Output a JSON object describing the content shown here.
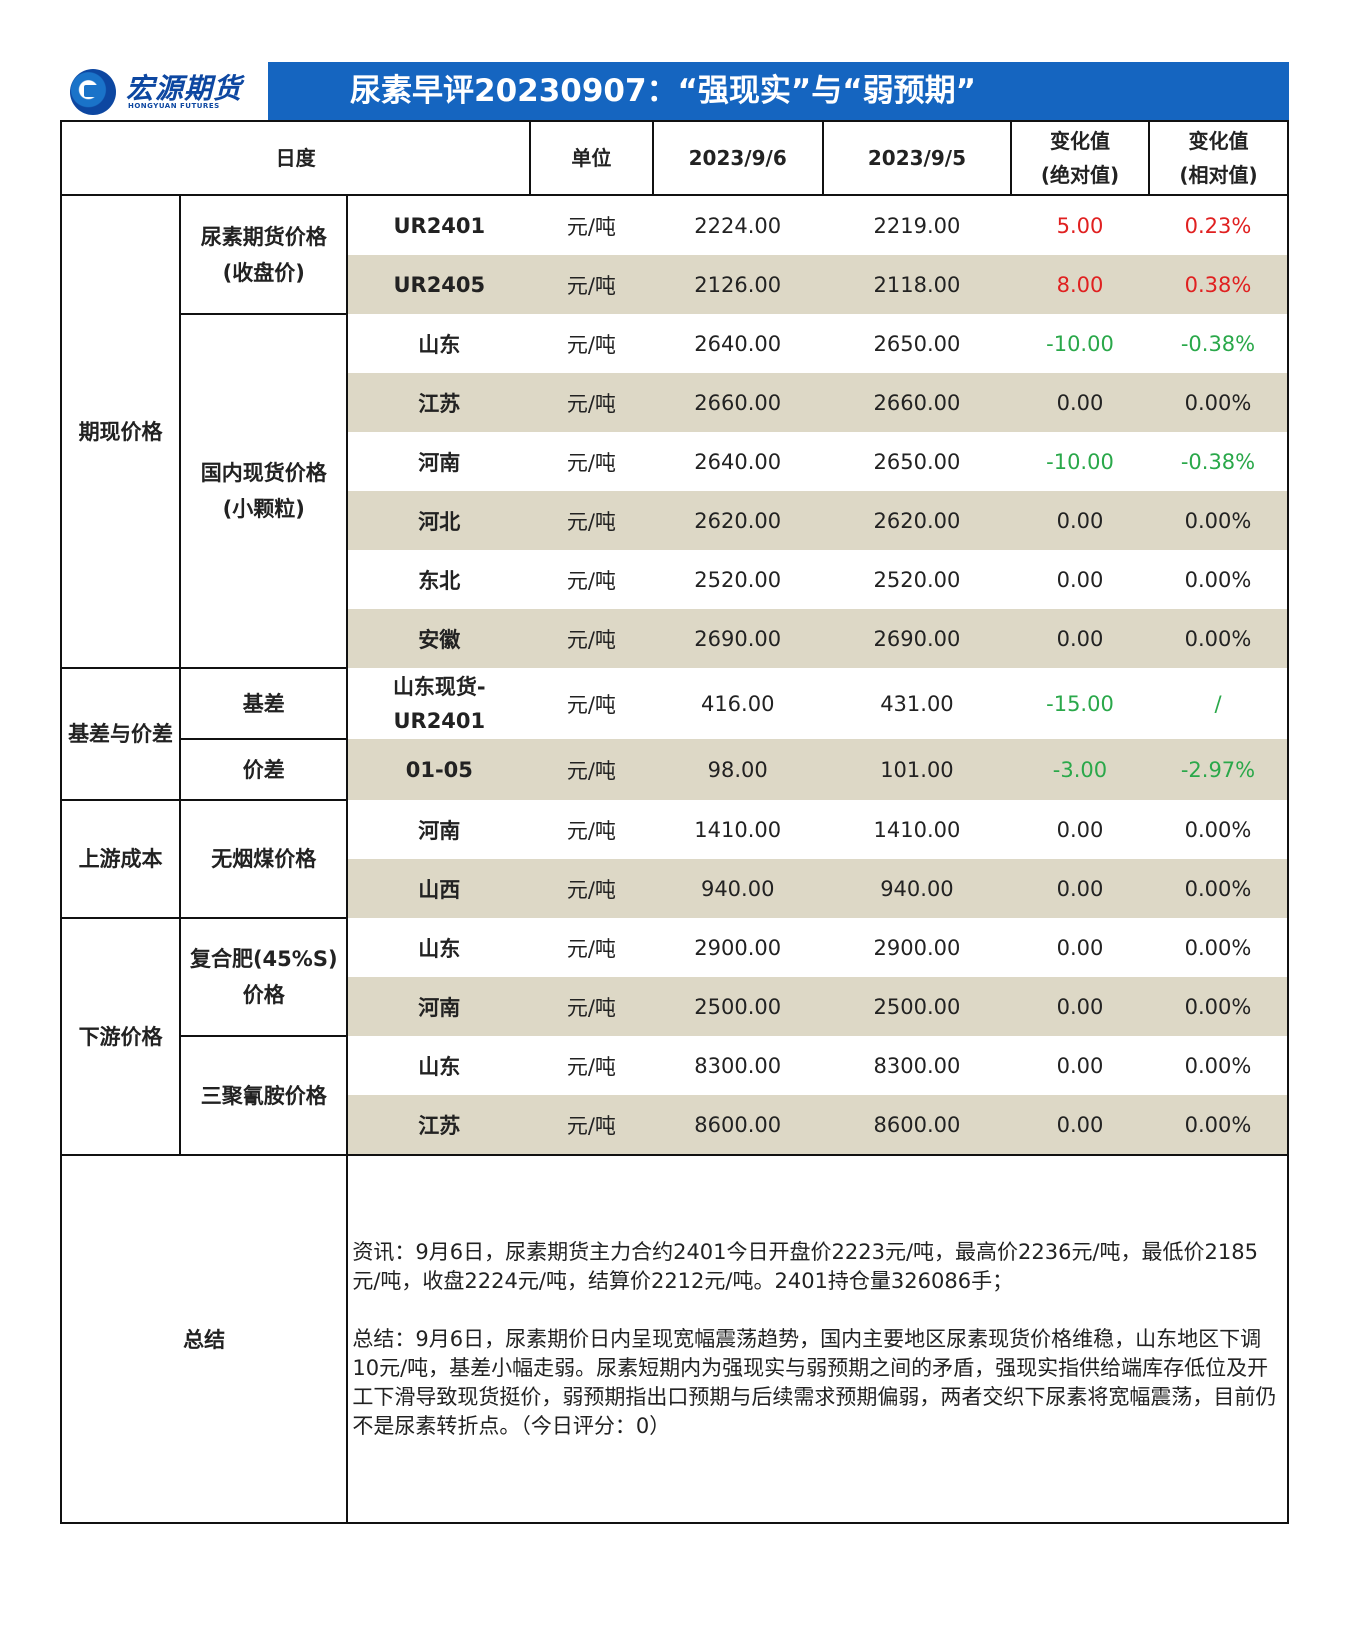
{
  "header": {
    "logo_cn": "宏源期货",
    "logo_en": "HONGYUAN FUTURES",
    "title": "尿素早评20230907：“强现实”与“弱预期”"
  },
  "columns": {
    "period": "日度",
    "unit": "单位",
    "date1": "2023/9/6",
    "date2": "2023/9/5",
    "abs_change": [
      "变化值",
      "(绝对值)"
    ],
    "rel_change": [
      "变化值",
      "(相对值)"
    ]
  },
  "groups": {
    "qixian": "期现价格",
    "futures_label": [
      "尿素期货价格",
      "(收盘价)"
    ],
    "spot_label": [
      "国内现货价格",
      "(小颗粒)"
    ],
    "basis_group": "基差与价差",
    "basis_label": "基差",
    "spread_label": "价差",
    "upstream": "上游成本",
    "coal_label": "无烟煤价格",
    "downstream": "下游价格",
    "compound_label": [
      "复合肥(45%S)",
      "价格"
    ],
    "melamine_label": "三聚氰胺价格"
  },
  "rows": [
    {
      "name": "UR2401",
      "unit": "元/吨",
      "v1": "2224.00",
      "v2": "2219.00",
      "abs": "5.00",
      "rel": "0.23%",
      "color": "red"
    },
    {
      "name": "UR2405",
      "unit": "元/吨",
      "v1": "2126.00",
      "v2": "2118.00",
      "abs": "8.00",
      "rel": "0.38%",
      "color": "red"
    },
    {
      "name": "山东",
      "unit": "元/吨",
      "v1": "2640.00",
      "v2": "2650.00",
      "abs": "-10.00",
      "rel": "-0.38%",
      "color": "green"
    },
    {
      "name": "江苏",
      "unit": "元/吨",
      "v1": "2660.00",
      "v2": "2660.00",
      "abs": "0.00",
      "rel": "0.00%",
      "color": "black"
    },
    {
      "name": "河南",
      "unit": "元/吨",
      "v1": "2640.00",
      "v2": "2650.00",
      "abs": "-10.00",
      "rel": "-0.38%",
      "color": "green"
    },
    {
      "name": "河北",
      "unit": "元/吨",
      "v1": "2620.00",
      "v2": "2620.00",
      "abs": "0.00",
      "rel": "0.00%",
      "color": "black"
    },
    {
      "name": "东北",
      "unit": "元/吨",
      "v1": "2520.00",
      "v2": "2520.00",
      "abs": "0.00",
      "rel": "0.00%",
      "color": "black"
    },
    {
      "name": "安徽",
      "unit": "元/吨",
      "v1": "2690.00",
      "v2": "2690.00",
      "abs": "0.00",
      "rel": "0.00%",
      "color": "black"
    },
    {
      "name": "山东现货-UR2401",
      "name_lines": [
        "山东现货-",
        "UR2401"
      ],
      "unit": "元/吨",
      "v1": "416.00",
      "v2": "431.00",
      "abs": "-15.00",
      "rel": "/",
      "color": "green"
    },
    {
      "name": "01-05",
      "unit": "元/吨",
      "v1": "98.00",
      "v2": "101.00",
      "abs": "-3.00",
      "rel": "-2.97%",
      "color": "green"
    },
    {
      "name": "河南",
      "unit": "元/吨",
      "v1": "1410.00",
      "v2": "1410.00",
      "abs": "0.00",
      "rel": "0.00%",
      "color": "black"
    },
    {
      "name": "山西",
      "unit": "元/吨",
      "v1": "940.00",
      "v2": "940.00",
      "abs": "0.00",
      "rel": "0.00%",
      "color": "black"
    },
    {
      "name": "山东",
      "unit": "元/吨",
      "v1": "2900.00",
      "v2": "2900.00",
      "abs": "0.00",
      "rel": "0.00%",
      "color": "black"
    },
    {
      "name": "河南",
      "unit": "元/吨",
      "v1": "2500.00",
      "v2": "2500.00",
      "abs": "0.00",
      "rel": "0.00%",
      "color": "black"
    },
    {
      "name": "山东",
      "unit": "元/吨",
      "v1": "8300.00",
      "v2": "8300.00",
      "abs": "0.00",
      "rel": "0.00%",
      "color": "black"
    },
    {
      "name": "江苏",
      "unit": "元/吨",
      "v1": "8600.00",
      "v2": "8600.00",
      "abs": "0.00",
      "rel": "0.00%",
      "color": "black"
    }
  ],
  "summary": {
    "label": "总结",
    "news": "资讯：9月6日，尿素期货主力合约2401今日开盘价2223元/吨，最高价2236元/吨，最低价2185元/吨，收盘2224元/吨，结算价2212元/吨。2401持仓量326086手；",
    "conclusion": "总结：9月6日，尿素期价日内呈现宽幅震荡趋势，国内主要地区尿素现货价格维稳，山东地区下调10元/吨，基差小幅走弱。尿素短期内为强现实与弱预期之间的矛盾，强现实指供给端库存低位及开工下滑导致现货挺价，弱预期指出口预期与后续需求预期偏弱，两者交织下尿素将宽幅震荡，目前仍不是尿素转折点。（今日评分：0）"
  }
}
